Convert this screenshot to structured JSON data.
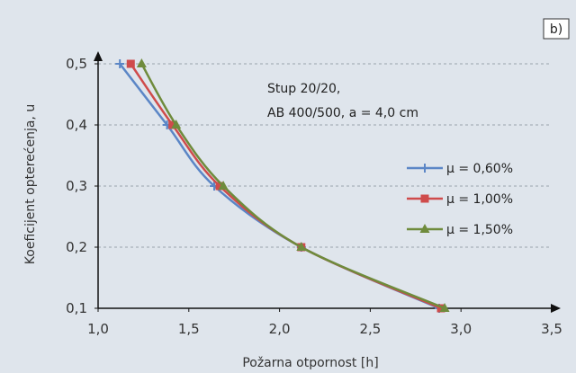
{
  "panel_label": "b)",
  "colors": {
    "background": "#dfe5ec",
    "grid": "#9aa3ad",
    "axis": "#111111",
    "series": [
      "#5b86c6",
      "#cf4b4b",
      "#6f8b3c"
    ]
  },
  "chart_data": {
    "type": "line",
    "xlabel": "Požarna otpornost [h]",
    "ylabel": "Koeficijent opterećenja, u",
    "xlim": [
      1.0,
      3.5
    ],
    "ylim": [
      0.1,
      0.5
    ],
    "xticks": [
      1.0,
      1.5,
      2.0,
      2.5,
      3.0,
      3.5
    ],
    "xtick_labels": [
      "1,0",
      "1,5",
      "2,0",
      "2,5",
      "3,0",
      "3,5"
    ],
    "yticks": [
      0.1,
      0.2,
      0.3,
      0.4,
      0.5
    ],
    "ytick_labels": [
      "0,1",
      "0,2",
      "0,3",
      "0,4",
      "0,5"
    ],
    "grid": "horizontal dashed",
    "legend_position": "right",
    "annotation": [
      "Stup 20/20,",
      "AB 400/500, a = 4,0 cm"
    ],
    "series": [
      {
        "name": "μ = 0,60%",
        "color": "#5b86c6",
        "marker": "plus",
        "x": [
          1.12,
          1.38,
          1.64,
          2.12,
          2.88
        ],
        "y": [
          0.5,
          0.4,
          0.3,
          0.2,
          0.1
        ]
      },
      {
        "name": "μ = 1,00%",
        "color": "#cf4b4b",
        "marker": "square",
        "x": [
          1.18,
          1.41,
          1.67,
          2.12,
          2.89
        ],
        "y": [
          0.5,
          0.4,
          0.3,
          0.2,
          0.1
        ]
      },
      {
        "name": "μ = 1,50%",
        "color": "#6f8b3c",
        "marker": "triangle",
        "x": [
          1.24,
          1.43,
          1.69,
          2.12,
          2.91
        ],
        "y": [
          0.5,
          0.4,
          0.3,
          0.2,
          0.1
        ]
      }
    ]
  }
}
